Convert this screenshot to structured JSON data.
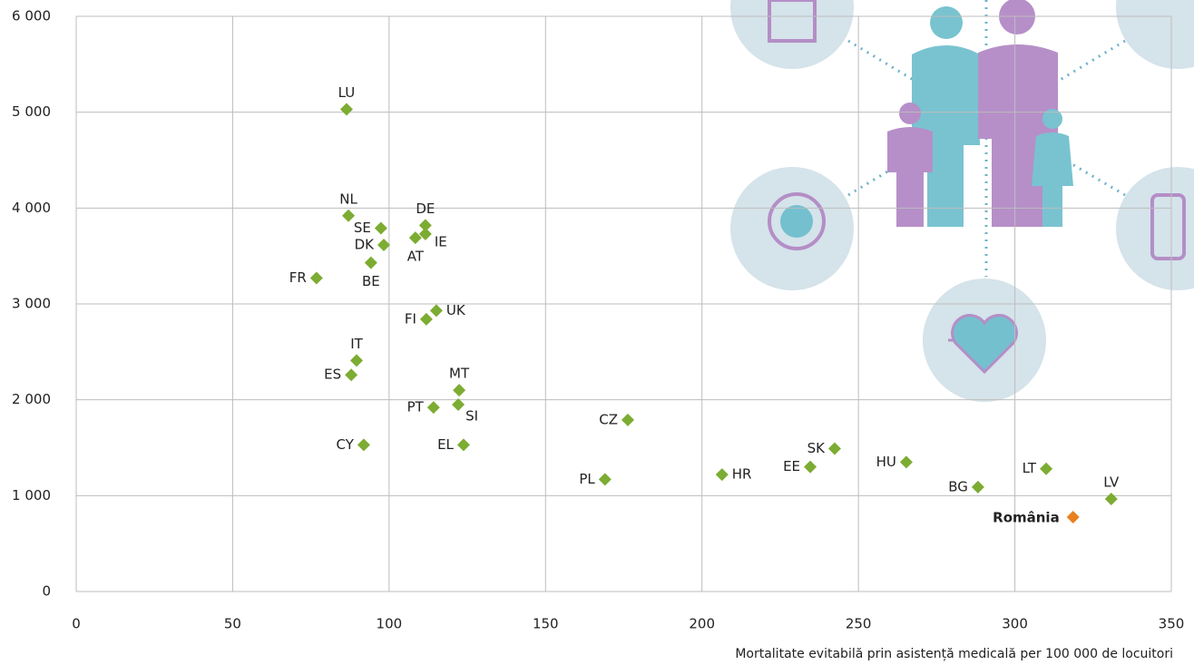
{
  "chart_data": {
    "type": "scatter",
    "x_label": "Mortalitate evitabilă prin asistență medicală per 100 000 de locuitori",
    "xlim": [
      0,
      350
    ],
    "xticks": [
      0,
      50,
      100,
      150,
      200,
      250,
      300,
      350
    ],
    "ylim": [
      0,
      6000
    ],
    "yticks": [
      0,
      {
        "value": 1000,
        "label": "1 000"
      },
      {
        "value": 2000,
        "label": "2 000"
      },
      {
        "value": 3000,
        "label": "3 000"
      },
      {
        "value": 4000,
        "label": "4 000"
      },
      {
        "value": 5000,
        "label": "5 000"
      },
      {
        "value": 6000,
        "label": "6 000"
      }
    ],
    "grid": true,
    "series": [
      {
        "color": "#7cac32",
        "labels": [
          "LU",
          "NL",
          "SE",
          "DE",
          "IE",
          "AT",
          "DK",
          "BE",
          "FR",
          "UK",
          "FI",
          "IT",
          "ES",
          "MT",
          "SI",
          "PT",
          "CZ",
          "CY",
          "EL",
          "PL",
          "HR",
          "EE",
          "SK",
          "HU",
          "BG",
          "LT",
          "LV"
        ],
        "x": [
          86.4,
          87,
          97.4,
          111.6,
          111.6,
          108.4,
          98.3,
          94.2,
          76.8,
          115.1,
          111.9,
          89.6,
          87.9,
          122.4,
          122.1,
          114.2,
          176.3,
          91.9,
          123.8,
          169,
          206.4,
          234.6,
          242.4,
          265.3,
          288.2,
          310,
          330.8
        ],
        "values": [
          5030,
          3920,
          3790,
          3820,
          3730,
          3690,
          3615,
          3430,
          3270,
          2930,
          2840,
          2410,
          2260,
          2100,
          1950,
          1920,
          1790,
          1530,
          1530,
          1170,
          1220,
          1300,
          1490,
          1350,
          1090,
          1280,
          965
        ]
      },
      {
        "color": "#e8801e",
        "labels": [
          "România"
        ],
        "x": [
          318.6
        ],
        "values": [
          776
        ]
      }
    ]
  }
}
